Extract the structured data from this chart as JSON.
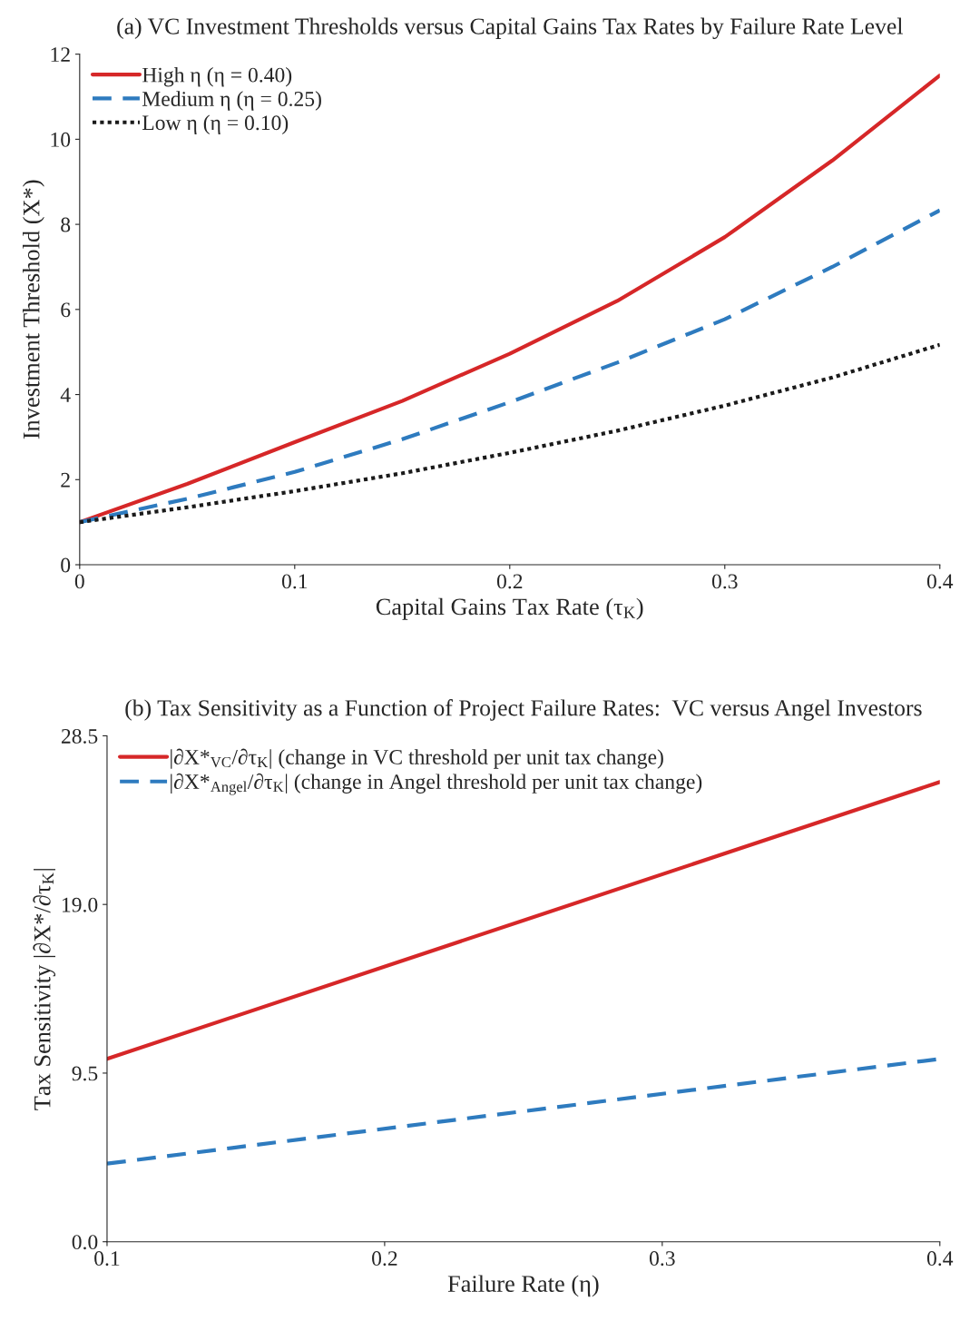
{
  "chart_data": [
    {
      "type": "line",
      "title": "(a) VC Investment Thresholds versus Capital Gains Tax Rates by Failure Rate Level",
      "xlabel": "Capital Gains Tax Rate (τ$_{K}$)",
      "ylabel": "Investment Threshold (X*)",
      "x": [
        0,
        0.05,
        0.1,
        0.15,
        0.2,
        0.25,
        0.3,
        0.35,
        0.4
      ],
      "series": [
        {
          "name": "High η (η = 0.40)",
          "color": "#d62728",
          "line_style": "solid",
          "values": [
            1.0,
            1.9,
            2.88,
            3.85,
            4.96,
            6.2,
            7.7,
            9.5,
            11.5
          ]
        },
        {
          "name": "Medium η (η = 0.25)",
          "color": "#2e7bbf",
          "line_style": "dashed",
          "values": [
            1.0,
            1.55,
            2.18,
            2.95,
            3.82,
            4.75,
            5.77,
            7.0,
            8.33
          ]
        },
        {
          "name": "Low η (η = 0.10)",
          "color": "#1a1a1a",
          "line_style": "dotted",
          "values": [
            1.0,
            1.35,
            1.73,
            2.15,
            2.63,
            3.15,
            3.74,
            4.4,
            5.17
          ]
        }
      ],
      "xlim": [
        0,
        0.4
      ],
      "ylim": [
        0,
        12
      ],
      "xticks": [
        0,
        0.1,
        0.2,
        0.3,
        0.4
      ],
      "yticks": [
        0,
        2,
        4,
        6,
        8,
        10,
        12
      ],
      "grid": false,
      "legend": "top left",
      "marker": "none"
    },
    {
      "type": "line",
      "title": "(b) Tax Sensitivity as a Function of Project Failure Rates:  VC versus Angel Investors",
      "xlabel": "Failure Rate (η)",
      "ylabel": "Tax Sensitivity |∂X*/∂τ$_{K}$|",
      "x": [
        0.1,
        0.4
      ],
      "series": [
        {
          "name": "|∂X*$_{VC}$/∂τ$_{K}$| (change in VC threshold per unit tax change)",
          "color": "#d62728",
          "line_style": "solid",
          "values": [
            10.3,
            25.9
          ]
        },
        {
          "name": "|∂X*$_{Angel}$/∂τ$_{K}$| (change in Angel threshold per unit tax change)",
          "color": "#2e7bbf",
          "line_style": "dashed",
          "values": [
            4.4,
            10.3
          ]
        }
      ],
      "xlim": [
        0.1,
        0.4
      ],
      "ylim": [
        0,
        28.5
      ],
      "xticks": [
        0.1,
        0.2,
        0.3,
        0.4
      ],
      "yticks": [
        {
          "value": 0,
          "label": "0.0"
        },
        9.5,
        {
          "value": 19,
          "label": "19.0"
        },
        28.5
      ],
      "grid": false,
      "legend": "top left",
      "marker": "none"
    }
  ]
}
